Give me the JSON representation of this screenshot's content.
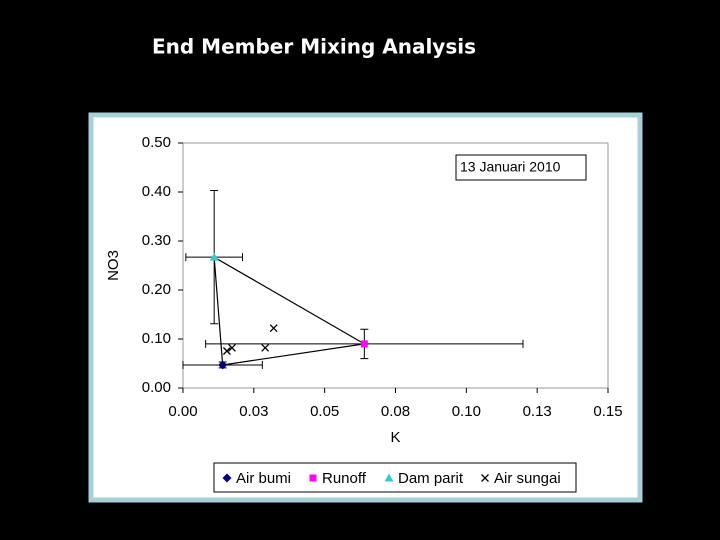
{
  "chart_data": {
    "type": "scatter",
    "title": "End Member Mixing Analysis",
    "annotation": "13 Januari 2010",
    "x_label": "K",
    "y_label": "NO3",
    "xlim": [
      0,
      0.15
    ],
    "ylim": [
      0,
      0.5
    ],
    "xticks": [
      {
        "value": 0,
        "label": "0.00"
      },
      {
        "value": 0.025,
        "label": "0.03"
      },
      {
        "value": 0.05,
        "label": "0.05"
      },
      {
        "value": 0.075,
        "label": "0.08"
      },
      {
        "value": 0.1,
        "label": "0.10"
      },
      {
        "value": 0.125,
        "label": "0.13"
      },
      {
        "value": 0.15,
        "label": "0.15"
      }
    ],
    "yticks": [
      {
        "value": 0,
        "label": "0.00"
      },
      {
        "value": 0.1,
        "label": "0.10"
      },
      {
        "value": 0.2,
        "label": "0.20"
      },
      {
        "value": 0.3,
        "label": "0.30"
      },
      {
        "value": 0.4,
        "label": "0.40"
      },
      {
        "value": 0.5,
        "label": "0.50"
      }
    ],
    "grid": false,
    "legend": "bottom",
    "series": [
      {
        "name": "Air bumi",
        "color": "#000080",
        "marker": "diamond",
        "x": [
          0.014
        ],
        "values": [
          0.047
        ],
        "xerr": [
          0.014
        ],
        "yerr": [
          0.006
        ]
      },
      {
        "name": "Runoff",
        "color": "#ff00ff",
        "marker": "square",
        "x": [
          0.064
        ],
        "values": [
          0.09
        ],
        "xerr": [
          0.056
        ],
        "yerr": [
          0.03
        ]
      },
      {
        "name": "Dam parit",
        "color": "#33cccc",
        "marker": "triangle",
        "x": [
          0.011
        ],
        "values": [
          0.267
        ],
        "xerr": [
          0.01
        ],
        "yerr": [
          0.136
        ]
      },
      {
        "name": "Air sungai",
        "color": "#000000",
        "marker": "x",
        "x": [
          0.0155,
          0.0173,
          0.029,
          0.032
        ],
        "values": [
          0.0755,
          0.082,
          0.082,
          0.122
        ]
      }
    ]
  }
}
